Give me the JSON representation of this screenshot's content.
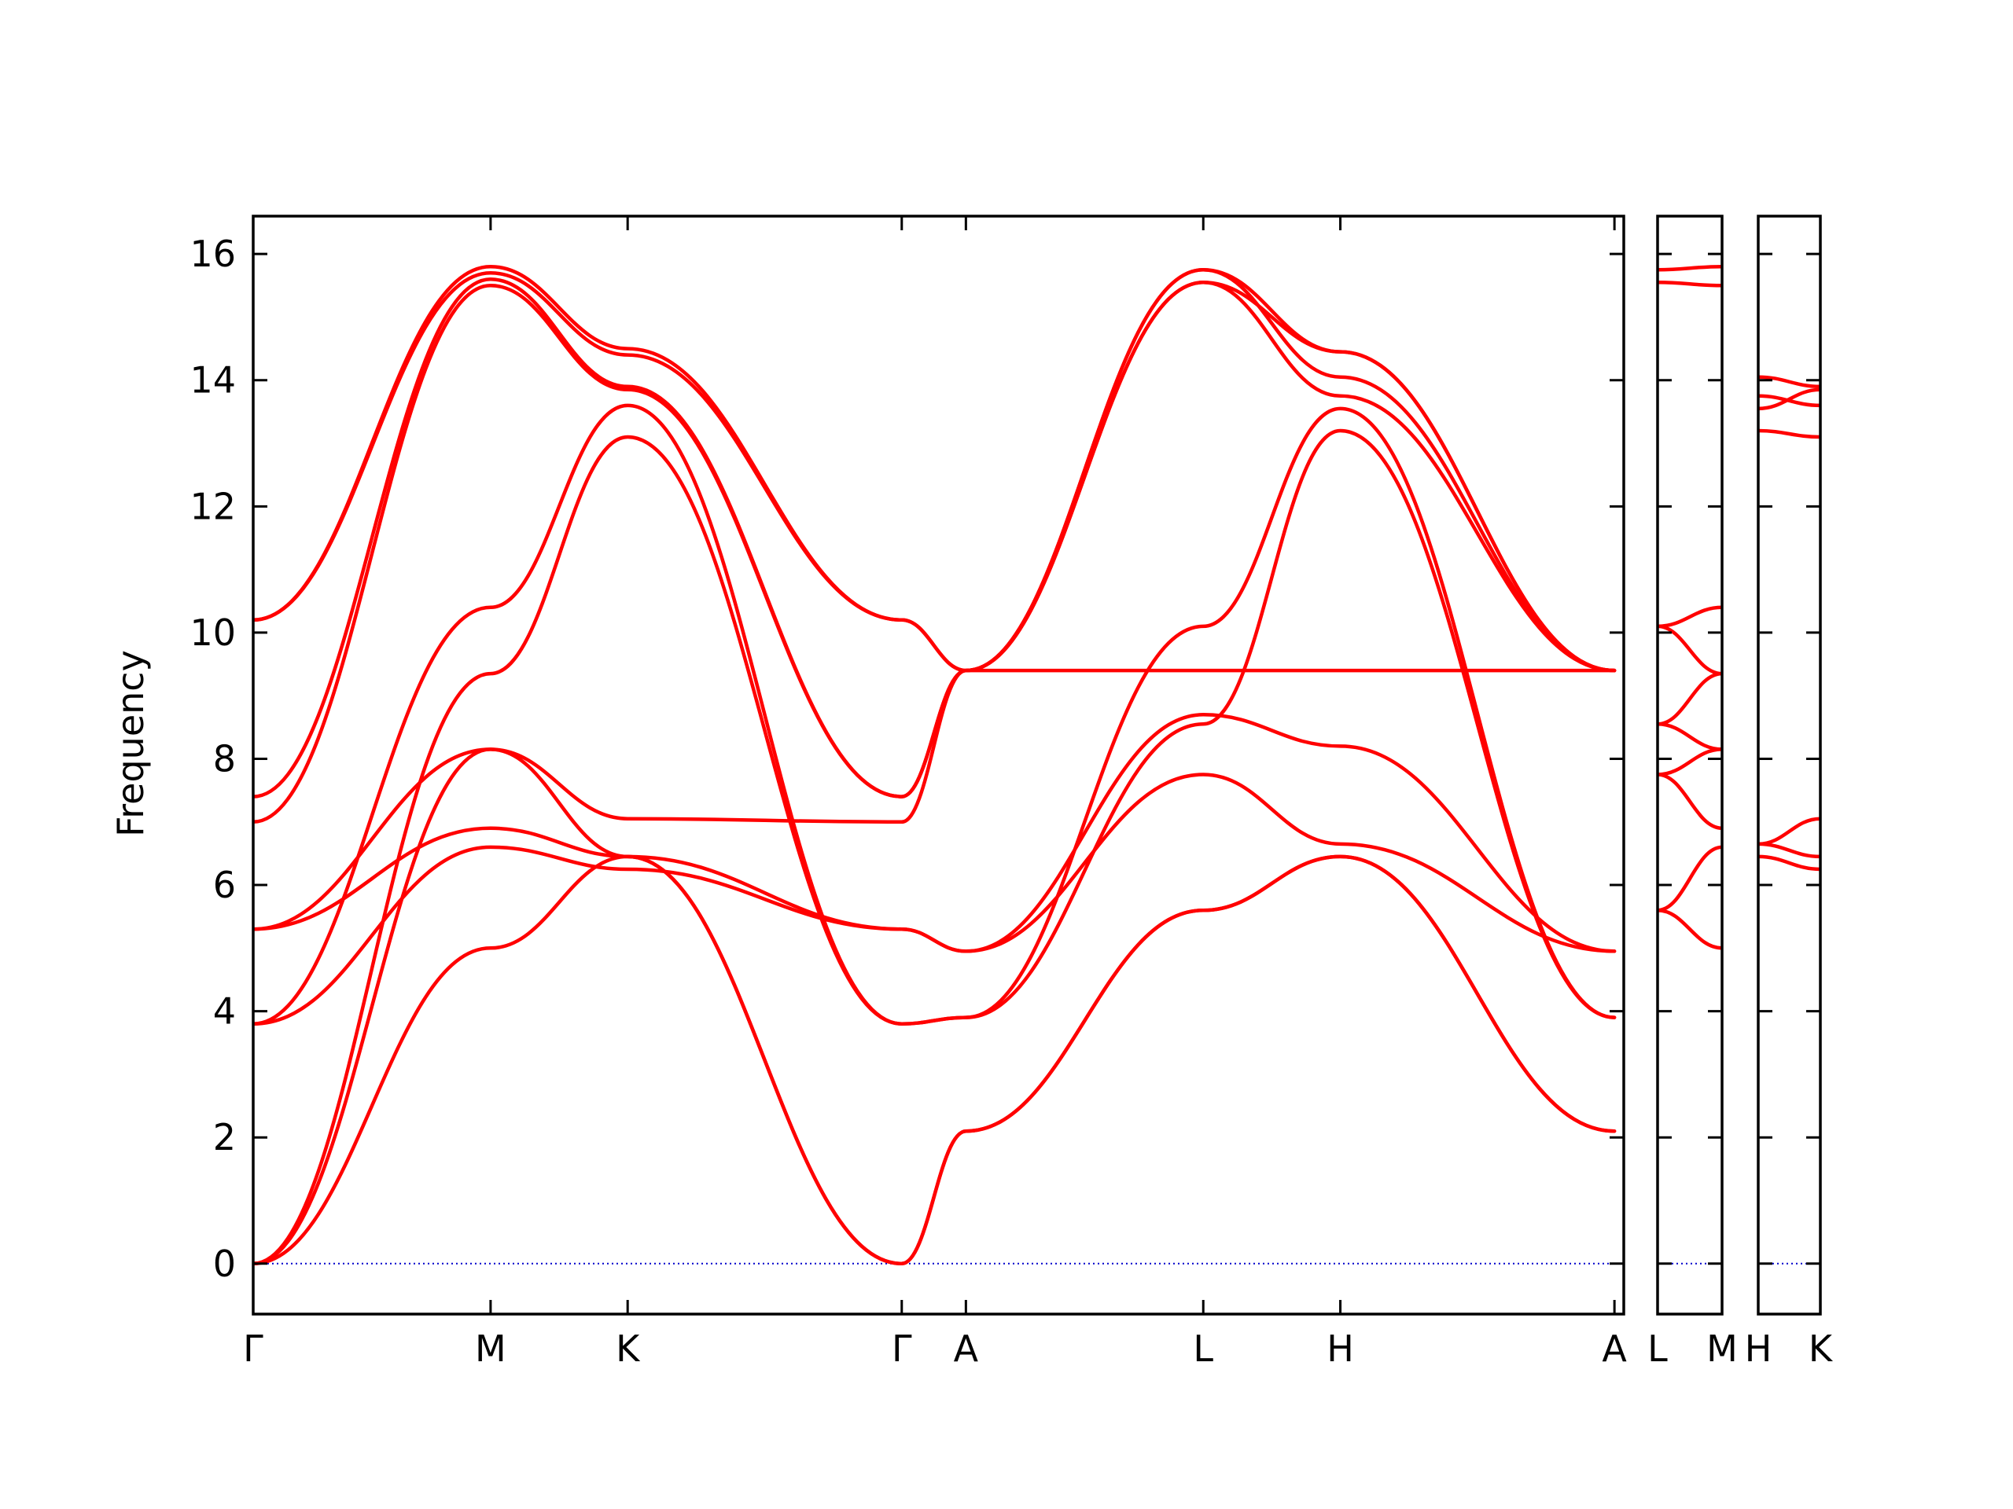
{
  "chart_data": {
    "type": "line",
    "title": "",
    "ylabel": "Frequency",
    "xlabel": "",
    "ylim": [
      -0.8,
      16.6
    ],
    "yticks": [
      0,
      2,
      4,
      6,
      8,
      10,
      12,
      14,
      16
    ],
    "ytick_labels": [
      "0",
      "2",
      "4",
      "6",
      "8",
      "10",
      "12",
      "14",
      "16"
    ],
    "line_color": "#ff0000",
    "zero_line_color": "#0000cc",
    "panels": [
      {
        "name": "Γ-M-K-Γ-A-L-H-A",
        "xlim": [
          0,
          10.0
        ],
        "ticks": [
          {
            "x": 0.0,
            "label": "Γ"
          },
          {
            "x": 1.732,
            "label": "M"
          },
          {
            "x": 2.732,
            "label": "K"
          },
          {
            "x": 4.732,
            "label": "Γ"
          },
          {
            "x": 5.2,
            "label": "A"
          },
          {
            "x": 6.932,
            "label": "L"
          },
          {
            "x": 7.932,
            "label": "H"
          },
          {
            "x": 9.932,
            "label": "A"
          }
        ],
        "branches": [
          {
            "x": [
              0,
              1.732,
              2.732,
              4.732,
              5.2,
              6.932,
              7.932,
              9.932
            ],
            "y": [
              0,
              5.0,
              6.45,
              0,
              2.1,
              5.6,
              6.45,
              2.1
            ]
          },
          {
            "x": [
              0,
              1.732,
              2.732,
              4.732,
              5.2,
              6.932,
              7.932,
              9.932
            ],
            "y": [
              0,
              8.15,
              6.45,
              0,
              2.1,
              5.6,
              6.45,
              2.1
            ]
          },
          {
            "x": [
              0,
              1.732,
              2.732,
              4.732,
              5.2,
              6.932,
              7.932,
              9.932
            ],
            "y": [
              0,
              9.35,
              13.1,
              3.8,
              3.9,
              8.55,
              13.2,
              3.9
            ]
          },
          {
            "x": [
              0,
              1.732,
              2.732,
              4.732,
              5.2,
              6.932,
              7.932,
              9.932
            ],
            "y": [
              3.8,
              10.4,
              13.6,
              3.8,
              3.9,
              10.1,
              13.55,
              3.9
            ]
          },
          {
            "x": [
              0,
              1.732,
              2.732,
              4.732,
              5.2,
              6.932,
              7.932,
              9.932
            ],
            "y": [
              3.8,
              6.6,
              6.25,
              5.3,
              4.95,
              7.75,
              6.65,
              4.95
            ]
          },
          {
            "x": [
              0,
              1.732,
              2.732,
              4.732,
              5.2,
              6.932,
              7.932,
              9.932
            ],
            "y": [
              5.3,
              6.9,
              6.45,
              5.3,
              4.95,
              8.7,
              8.2,
              4.95
            ]
          },
          {
            "x": [
              0,
              1.732,
              2.732,
              4.732,
              5.2,
              6.932,
              7.932,
              9.932
            ],
            "y": [
              5.3,
              8.15,
              7.05,
              7.0,
              9.4,
              9.4,
              9.4,
              9.4
            ]
          },
          {
            "x": [
              0,
              1.732,
              2.732,
              4.732,
              5.2,
              6.932,
              7.932,
              9.932
            ],
            "y": [
              7.0,
              15.5,
              13.85,
              7.4,
              9.4,
              15.55,
              13.75,
              9.4
            ]
          },
          {
            "x": [
              0,
              1.732,
              2.732,
              4.732,
              5.2,
              6.932,
              7.932,
              9.932
            ],
            "y": [
              7.4,
              15.6,
              13.9,
              7.4,
              9.4,
              15.75,
              14.05,
              9.4
            ]
          },
          {
            "x": [
              0,
              1.732,
              2.732,
              4.732,
              5.2,
              6.932,
              7.932,
              9.932
            ],
            "y": [
              10.2,
              15.7,
              14.4,
              10.2,
              9.4,
              15.55,
              14.45,
              9.4
            ]
          },
          {
            "x": [
              0,
              1.732,
              2.732,
              4.732,
              5.2,
              6.932,
              7.932,
              9.932
            ],
            "y": [
              10.2,
              15.8,
              14.5,
              10.2,
              9.4,
              15.75,
              14.45,
              9.4
            ]
          }
        ]
      },
      {
        "name": "L-M",
        "xlim": [
          0,
          1.0
        ],
        "ticks": [
          {
            "x": 0.0,
            "label": "L"
          },
          {
            "x": 1.0,
            "label": "M"
          }
        ],
        "branches": [
          {
            "x": [
              0,
              1
            ],
            "y": [
              5.6,
              5.0
            ]
          },
          {
            "x": [
              0,
              1
            ],
            "y": [
              5.6,
              6.6
            ]
          },
          {
            "x": [
              0,
              1
            ],
            "y": [
              7.75,
              6.9
            ]
          },
          {
            "x": [
              0,
              1
            ],
            "y": [
              7.75,
              8.15
            ]
          },
          {
            "x": [
              0,
              1
            ],
            "y": [
              8.55,
              9.35
            ]
          },
          {
            "x": [
              0,
              1
            ],
            "y": [
              8.55,
              8.15
            ]
          },
          {
            "x": [
              0,
              1
            ],
            "y": [
              10.1,
              10.4
            ]
          },
          {
            "x": [
              0,
              1
            ],
            "y": [
              10.1,
              9.35
            ]
          },
          {
            "x": [
              0,
              1
            ],
            "y": [
              15.55,
              15.5
            ]
          },
          {
            "x": [
              0,
              1
            ],
            "y": [
              15.75,
              15.8
            ]
          }
        ]
      },
      {
        "name": "H-K",
        "xlim": [
          0,
          1.0
        ],
        "ticks": [
          {
            "x": 0.0,
            "label": "H"
          },
          {
            "x": 1.0,
            "label": "K"
          }
        ],
        "branches": [
          {
            "x": [
              0,
              1
            ],
            "y": [
              6.65,
              6.45
            ]
          },
          {
            "x": [
              0,
              1
            ],
            "y": [
              6.65,
              7.05
            ]
          },
          {
            "x": [
              0,
              1
            ],
            "y": [
              6.45,
              6.25
            ]
          },
          {
            "x": [
              0,
              1
            ],
            "y": [
              13.2,
              13.1
            ]
          },
          {
            "x": [
              0,
              1
            ],
            "y": [
              13.55,
              13.85
            ]
          },
          {
            "x": [
              0,
              1
            ],
            "y": [
              13.75,
              13.6
            ]
          },
          {
            "x": [
              0,
              1
            ],
            "y": [
              14.05,
              13.9
            ]
          }
        ]
      }
    ]
  }
}
